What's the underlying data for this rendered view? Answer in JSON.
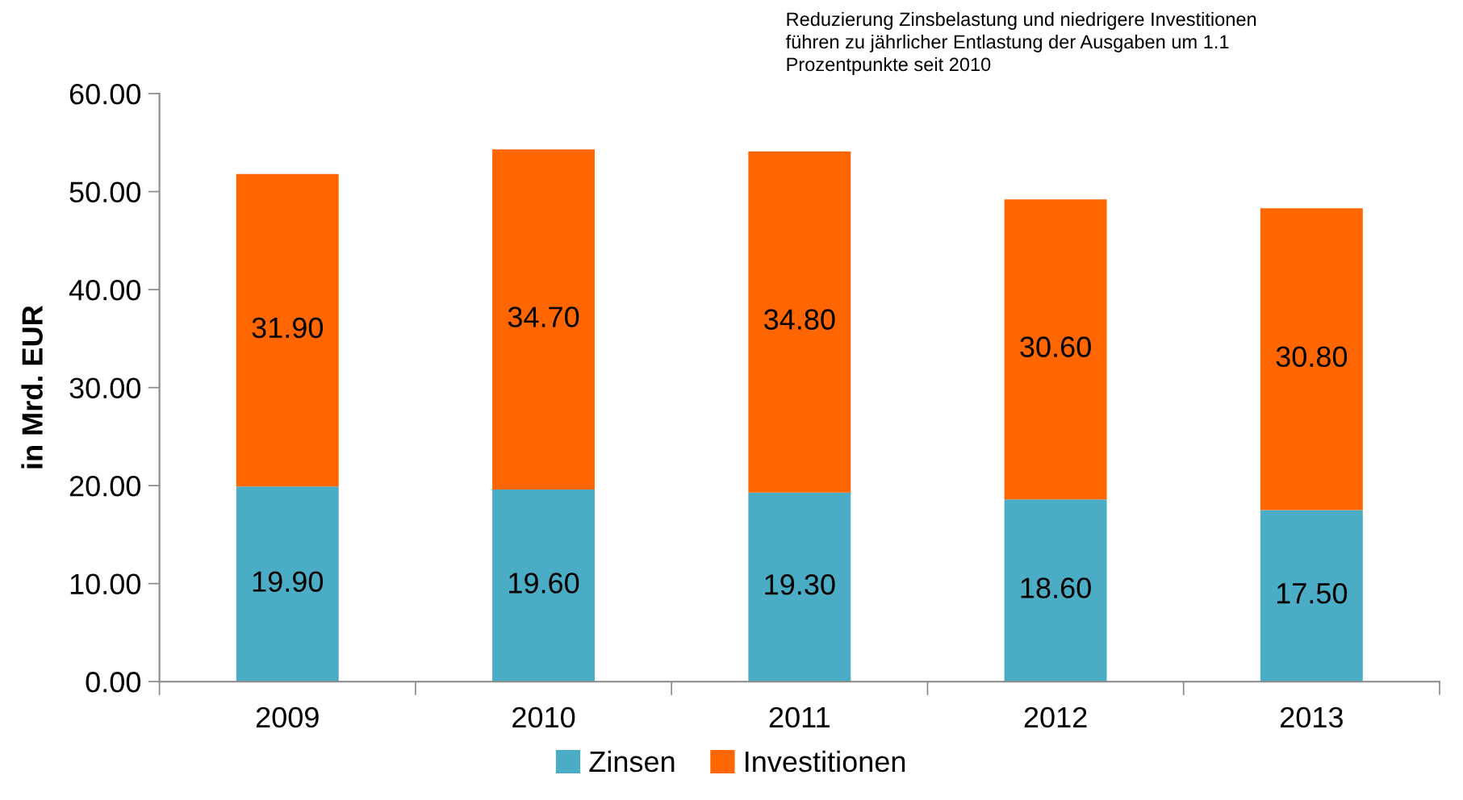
{
  "chart_data": {
    "type": "bar",
    "stacked": true,
    "annotations": [
      "Reduzierung Zinsbelastung und niedrigere Investitionen\nführen zu jährlicher Entlastung der Ausgaben um 1.1\nProzentpunkte seit 2010"
    ],
    "ylabel": "in Mrd. EUR",
    "categories": [
      "2009",
      "2010",
      "2011",
      "2012",
      "2013"
    ],
    "series": [
      {
        "name": "Zinsen",
        "color": "#4bacc6",
        "values": [
          19.9,
          19.6,
          19.3,
          18.6,
          17.5
        ],
        "value_labels": [
          "19.90",
          "19.60",
          "19.30",
          "18.60",
          "17.50"
        ]
      },
      {
        "name": "Investitionen",
        "color": "#ff6600",
        "values": [
          31.9,
          34.7,
          34.8,
          30.6,
          30.8
        ],
        "value_labels": [
          "31.90",
          "34.70",
          "34.80",
          "30.60",
          "30.80"
        ]
      }
    ],
    "ylim": [
      0,
      60
    ],
    "yticks": [
      {
        "value": 0,
        "label": "0.00"
      },
      {
        "value": 10,
        "label": "10.00"
      },
      {
        "value": 20,
        "label": "20.00"
      },
      {
        "value": 30,
        "label": "30.00"
      },
      {
        "value": 40,
        "label": "40.00"
      },
      {
        "value": 50,
        "label": "50.00"
      },
      {
        "value": 60,
        "label": "60.00"
      }
    ],
    "grid": false,
    "legend": "bottom"
  }
}
